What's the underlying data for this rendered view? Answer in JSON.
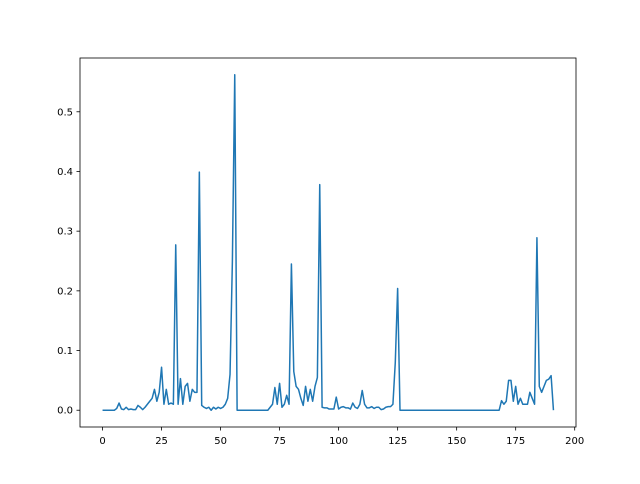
{
  "chart_data": {
    "type": "line",
    "x": [
      0,
      1,
      2,
      3,
      4,
      5,
      6,
      7,
      8,
      9,
      10,
      11,
      12,
      13,
      14,
      15,
      16,
      17,
      18,
      19,
      20,
      21,
      22,
      23,
      24,
      25,
      26,
      27,
      28,
      29,
      30,
      31,
      32,
      33,
      34,
      35,
      36,
      37,
      38,
      39,
      40,
      41,
      42,
      43,
      44,
      45,
      46,
      47,
      48,
      49,
      50,
      51,
      52,
      53,
      54,
      55,
      56,
      57,
      58,
      59,
      60,
      61,
      62,
      63,
      64,
      65,
      66,
      67,
      68,
      69,
      70,
      71,
      72,
      73,
      74,
      75,
      76,
      77,
      78,
      79,
      80,
      81,
      82,
      83,
      84,
      85,
      86,
      87,
      88,
      89,
      90,
      91,
      92,
      93,
      94,
      95,
      96,
      97,
      98,
      99,
      100,
      101,
      102,
      103,
      104,
      105,
      106,
      107,
      108,
      109,
      110,
      111,
      112,
      113,
      114,
      115,
      116,
      117,
      118,
      119,
      120,
      121,
      122,
      123,
      124,
      125,
      126,
      127,
      128,
      129,
      130,
      131,
      132,
      133,
      134,
      135,
      136,
      137,
      138,
      139,
      140,
      141,
      142,
      143,
      144,
      145,
      146,
      147,
      148,
      149,
      150,
      151,
      152,
      153,
      154,
      155,
      156,
      157,
      158,
      159,
      160,
      161,
      162,
      163,
      164,
      165,
      166,
      167,
      168,
      169,
      170,
      171,
      172,
      173,
      174,
      175,
      176,
      177,
      178,
      179,
      180,
      181,
      182,
      183,
      184,
      185,
      186,
      187,
      188,
      189,
      190,
      191
    ],
    "values": [
      0,
      0,
      0,
      0,
      0,
      0,
      0.003,
      0.012,
      0.002,
      0.001,
      0.005,
      0.001,
      0.002,
      0.001,
      0.001,
      0.008,
      0.005,
      0.001,
      0.005,
      0.01,
      0.015,
      0.02,
      0.035,
      0.015,
      0.03,
      0.072,
      0.01,
      0.035,
      0.01,
      0.012,
      0.01,
      0.277,
      0.01,
      0.053,
      0.01,
      0.04,
      0.045,
      0.015,
      0.035,
      0.03,
      0.03,
      0.399,
      0.008,
      0.005,
      0.003,
      0.005,
      0,
      0.005,
      0.002,
      0.005,
      0.003,
      0.005,
      0.01,
      0.02,
      0.06,
      0.25,
      0.562,
      0,
      0,
      0,
      0,
      0,
      0,
      0,
      0,
      0,
      0,
      0,
      0,
      0,
      0,
      0.005,
      0.01,
      0.038,
      0.01,
      0.045,
      0.005,
      0.01,
      0.025,
      0.01,
      0.245,
      0.065,
      0.04,
      0.035,
      0.02,
      0.008,
      0.04,
      0.015,
      0.035,
      0.015,
      0.04,
      0.055,
      0.378,
      0.005,
      0.004,
      0.004,
      0.002,
      0.002,
      0.002,
      0.022,
      0.002,
      0.005,
      0.006,
      0.004,
      0.004,
      0.002,
      0.012,
      0.005,
      0.003,
      0.01,
      0.033,
      0.01,
      0.004,
      0.004,
      0.006,
      0.003,
      0.005,
      0.005,
      0.001,
      0.002,
      0.005,
      0.006,
      0.006,
      0.01,
      0.08,
      0.204,
      0,
      0,
      0,
      0,
      0,
      0,
      0,
      0,
      0,
      0,
      0,
      0,
      0,
      0,
      0,
      0,
      0,
      0,
      0,
      0,
      0,
      0,
      0,
      0,
      0,
      0,
      0,
      0,
      0,
      0,
      0,
      0,
      0,
      0,
      0,
      0,
      0,
      0,
      0,
      0,
      0,
      0,
      0,
      0.016,
      0.01,
      0.015,
      0.05,
      0.05,
      0.015,
      0.04,
      0.01,
      0.02,
      0.01,
      0.01,
      0.01,
      0.03,
      0.02,
      0.01,
      0.289,
      0.04,
      0.03,
      0.04,
      0.05,
      0.052,
      0.058,
      0
    ],
    "color": "#1f77b4",
    "xlim": [
      -9.55,
      200.55
    ],
    "ylim": [
      -0.0281,
      0.5901
    ],
    "xticks": [
      0,
      25,
      50,
      75,
      100,
      125,
      150,
      175,
      200
    ],
    "yticks": [
      {
        "value": 0,
        "label": "0.0"
      },
      0.1,
      0.2,
      0.3,
      0.4,
      0.5
    ]
  }
}
